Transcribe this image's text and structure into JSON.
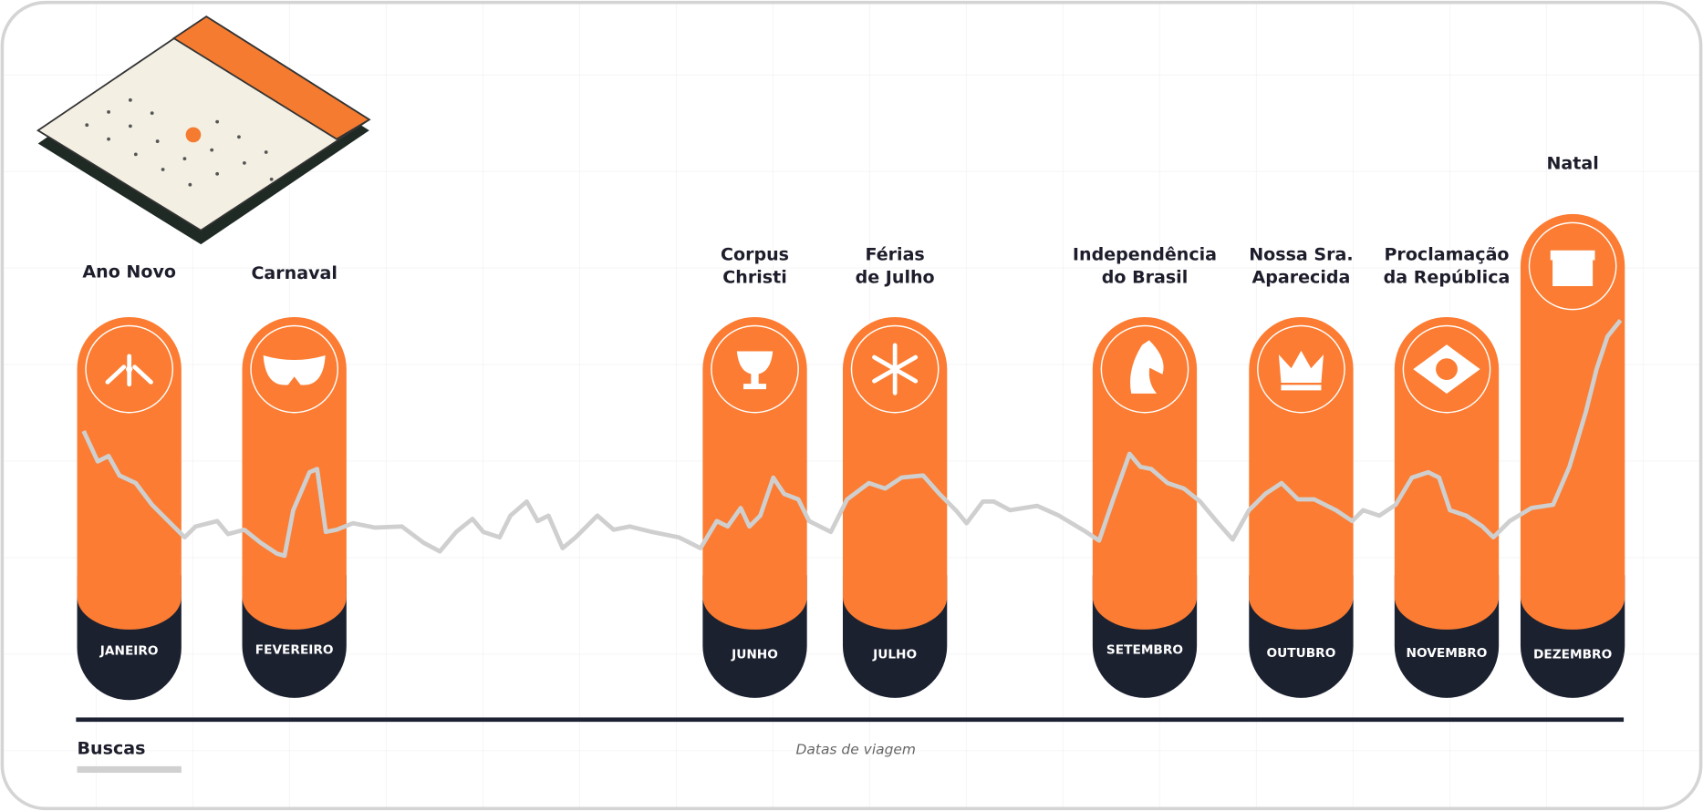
{
  "holidays": [
    {
      "name": [
        "Ano Novo"
      ],
      "month": "JANEIRO"
    },
    {
      "name": [
        "Carnaval"
      ],
      "month": "FEVEREIRO"
    },
    {
      "name": [
        "Corpus",
        "Christi"
      ],
      "month": "JUNHO"
    },
    {
      "name": [
        "Férias",
        "de Julho"
      ],
      "month": "JULHO"
    },
    {
      "name": [
        "Independência",
        "do Brasil"
      ],
      "month": "SETEMBRO"
    },
    {
      "name": [
        "Nossa Sra.",
        "Aparecida"
      ],
      "month": "OUTUBRO"
    },
    {
      "name": [
        "Proclamação",
        "da República"
      ],
      "month": "NOVEMBRO"
    },
    {
      "name": [
        "Natal"
      ],
      "month": "DEZEMBRO"
    }
  ],
  "legend": "Buscas",
  "x_axis_label": "Datas de viagem"
}
